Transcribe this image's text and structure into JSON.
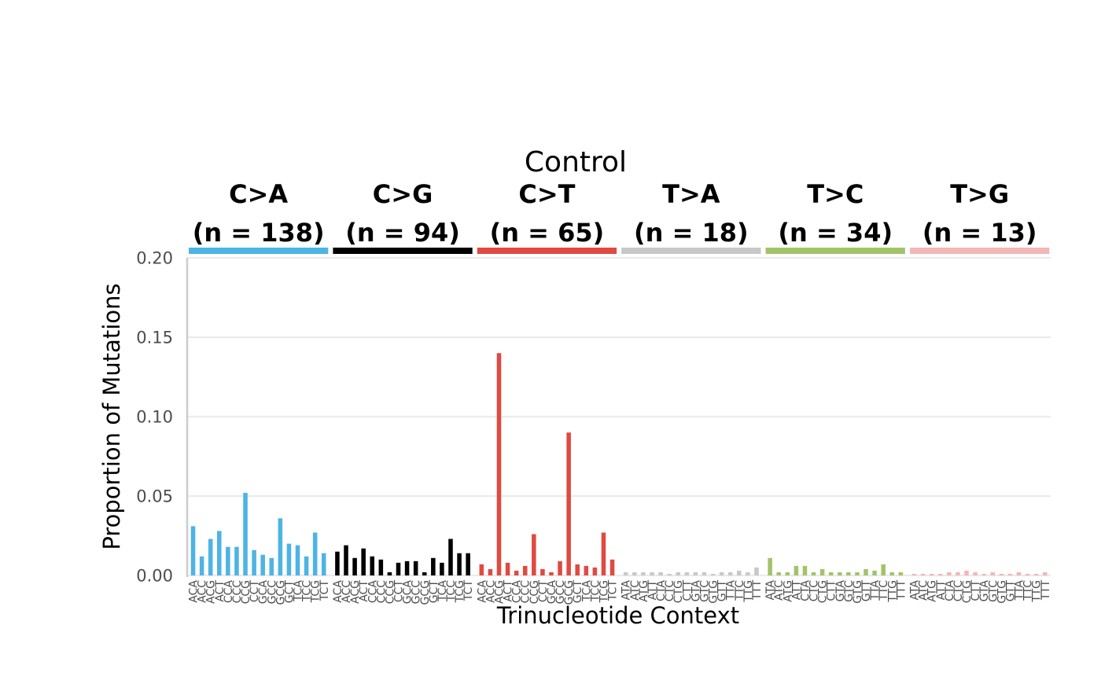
{
  "chart_data": {
    "type": "bar",
    "title": "Control",
    "xlabel": "Trinucleotide Context",
    "ylabel": "Proportion of Mutations",
    "ylim": [
      0,
      0.2
    ],
    "yticks": [
      "0.00",
      "0.05",
      "0.10",
      "0.15",
      "0.20"
    ],
    "ytick_values": [
      0,
      0.05,
      0.1,
      0.15,
      0.2
    ],
    "grid": "horizontal",
    "panels": [
      {
        "mutation": "C>A",
        "count_label": "(n = 138)",
        "color": "#4db4e4",
        "contexts": [
          "ACA",
          "ACC",
          "ACG",
          "ACT",
          "CCA",
          "CCC",
          "CCG",
          "CCT",
          "GCA",
          "GCC",
          "GCG",
          "GCT",
          "TCA",
          "TCC",
          "TCG",
          "TCT"
        ],
        "values": [
          0.031,
          0.012,
          0.023,
          0.028,
          0.018,
          0.018,
          0.052,
          0.016,
          0.013,
          0.011,
          0.036,
          0.02,
          0.019,
          0.012,
          0.027,
          0.014
        ]
      },
      {
        "mutation": "C>G",
        "count_label": "(n = 94)",
        "color": "#000000",
        "contexts": [
          "ACA",
          "ACC",
          "ACG",
          "ACT",
          "CCA",
          "CCC",
          "CCG",
          "CCT",
          "GCA",
          "GCC",
          "GCG",
          "GCT",
          "TCA",
          "TCC",
          "TCG",
          "TCT"
        ],
        "values": [
          0.015,
          0.019,
          0.011,
          0.017,
          0.012,
          0.01,
          0.002,
          0.008,
          0.009,
          0.009,
          0.002,
          0.011,
          0.008,
          0.023,
          0.014,
          0.014
        ]
      },
      {
        "mutation": "C>T",
        "count_label": "(n = 65)",
        "color": "#e04a40",
        "contexts": [
          "ACA",
          "ACC",
          "ACG",
          "ACT",
          "CCA",
          "CCC",
          "CCG",
          "CCT",
          "GCA",
          "GCC",
          "GCG",
          "GCT",
          "TCA",
          "TCC",
          "TCG",
          "TCT"
        ],
        "values": [
          0.007,
          0.004,
          0.14,
          0.008,
          0.003,
          0.006,
          0.026,
          0.004,
          0.002,
          0.009,
          0.09,
          0.007,
          0.006,
          0.005,
          0.027,
          0.01
        ]
      },
      {
        "mutation": "T>A",
        "count_label": "(n = 18)",
        "color": "#c8c8c8",
        "contexts": [
          "ATA",
          "ATC",
          "ATG",
          "ATT",
          "CTA",
          "CTC",
          "CTG",
          "CTT",
          "GTA",
          "GTC",
          "GTG",
          "GTT",
          "TTA",
          "TTC",
          "TTG",
          "TTT"
        ],
        "values": [
          0.002,
          0.002,
          0.002,
          0.002,
          0.002,
          0.001,
          0.002,
          0.002,
          0.002,
          0.002,
          0.001,
          0.002,
          0.002,
          0.003,
          0.002,
          0.005
        ]
      },
      {
        "mutation": "T>C",
        "count_label": "(n = 34)",
        "color": "#a2c369",
        "contexts": [
          "ATA",
          "ATC",
          "ATG",
          "ATT",
          "CTA",
          "CTC",
          "CTG",
          "CTT",
          "GTA",
          "GTC",
          "GTG",
          "GTT",
          "TTA",
          "TTC",
          "TTG",
          "TTT"
        ],
        "values": [
          0.011,
          0.002,
          0.002,
          0.006,
          0.006,
          0.002,
          0.004,
          0.002,
          0.002,
          0.002,
          0.002,
          0.004,
          0.003,
          0.007,
          0.002,
          0.002
        ]
      },
      {
        "mutation": "T>G",
        "count_label": "(n = 13)",
        "color": "#f2b7b6",
        "contexts": [
          "ATA",
          "ATC",
          "ATG",
          "ATT",
          "CTA",
          "CTC",
          "CTG",
          "CTT",
          "GTA",
          "GTC",
          "GTG",
          "GTT",
          "TTA",
          "TTC",
          "TTG",
          "TTT"
        ],
        "values": [
          0.001,
          0.001,
          0.001,
          0.001,
          0.002,
          0.002,
          0.003,
          0.002,
          0.001,
          0.002,
          0.001,
          0.001,
          0.002,
          0.001,
          0.001,
          0.002
        ]
      }
    ]
  }
}
